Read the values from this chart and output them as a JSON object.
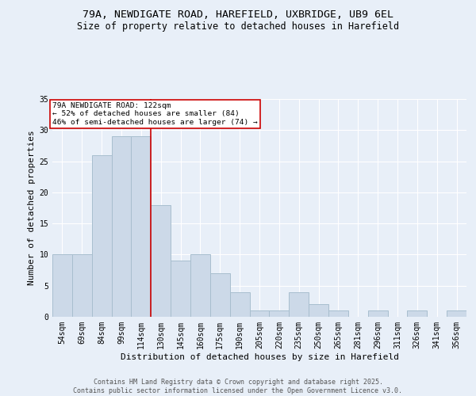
{
  "title1": "79A, NEWDIGATE ROAD, HAREFIELD, UXBRIDGE, UB9 6EL",
  "title2": "Size of property relative to detached houses in Harefield",
  "xlabel": "Distribution of detached houses by size in Harefield",
  "ylabel": "Number of detached properties",
  "bar_color": "#ccd9e8",
  "bar_edge_color": "#a8bece",
  "categories": [
    "54sqm",
    "69sqm",
    "84sqm",
    "99sqm",
    "114sqm",
    "130sqm",
    "145sqm",
    "160sqm",
    "175sqm",
    "190sqm",
    "205sqm",
    "220sqm",
    "235sqm",
    "250sqm",
    "265sqm",
    "281sqm",
    "296sqm",
    "311sqm",
    "326sqm",
    "341sqm",
    "356sqm"
  ],
  "values": [
    10,
    10,
    26,
    29,
    29,
    18,
    9,
    10,
    7,
    4,
    1,
    1,
    4,
    2,
    1,
    0,
    1,
    0,
    1,
    0,
    1
  ],
  "ylim": [
    0,
    35
  ],
  "yticks": [
    0,
    5,
    10,
    15,
    20,
    25,
    30,
    35
  ],
  "property_line_x": 4.5,
  "annotation_text": "79A NEWDIGATE ROAD: 122sqm\n← 52% of detached houses are smaller (84)\n46% of semi-detached houses are larger (74) →",
  "annotation_box_color": "#ffffff",
  "annotation_border_color": "#cc0000",
  "vline_color": "#cc0000",
  "bg_color": "#e8eff8",
  "footer_text": "Contains HM Land Registry data © Crown copyright and database right 2025.\nContains public sector information licensed under the Open Government Licence v3.0.",
  "grid_color": "#ffffff",
  "title_fontsize": 9.5,
  "subtitle_fontsize": 8.5,
  "tick_fontsize": 7,
  "label_fontsize": 8,
  "footer_fontsize": 6
}
